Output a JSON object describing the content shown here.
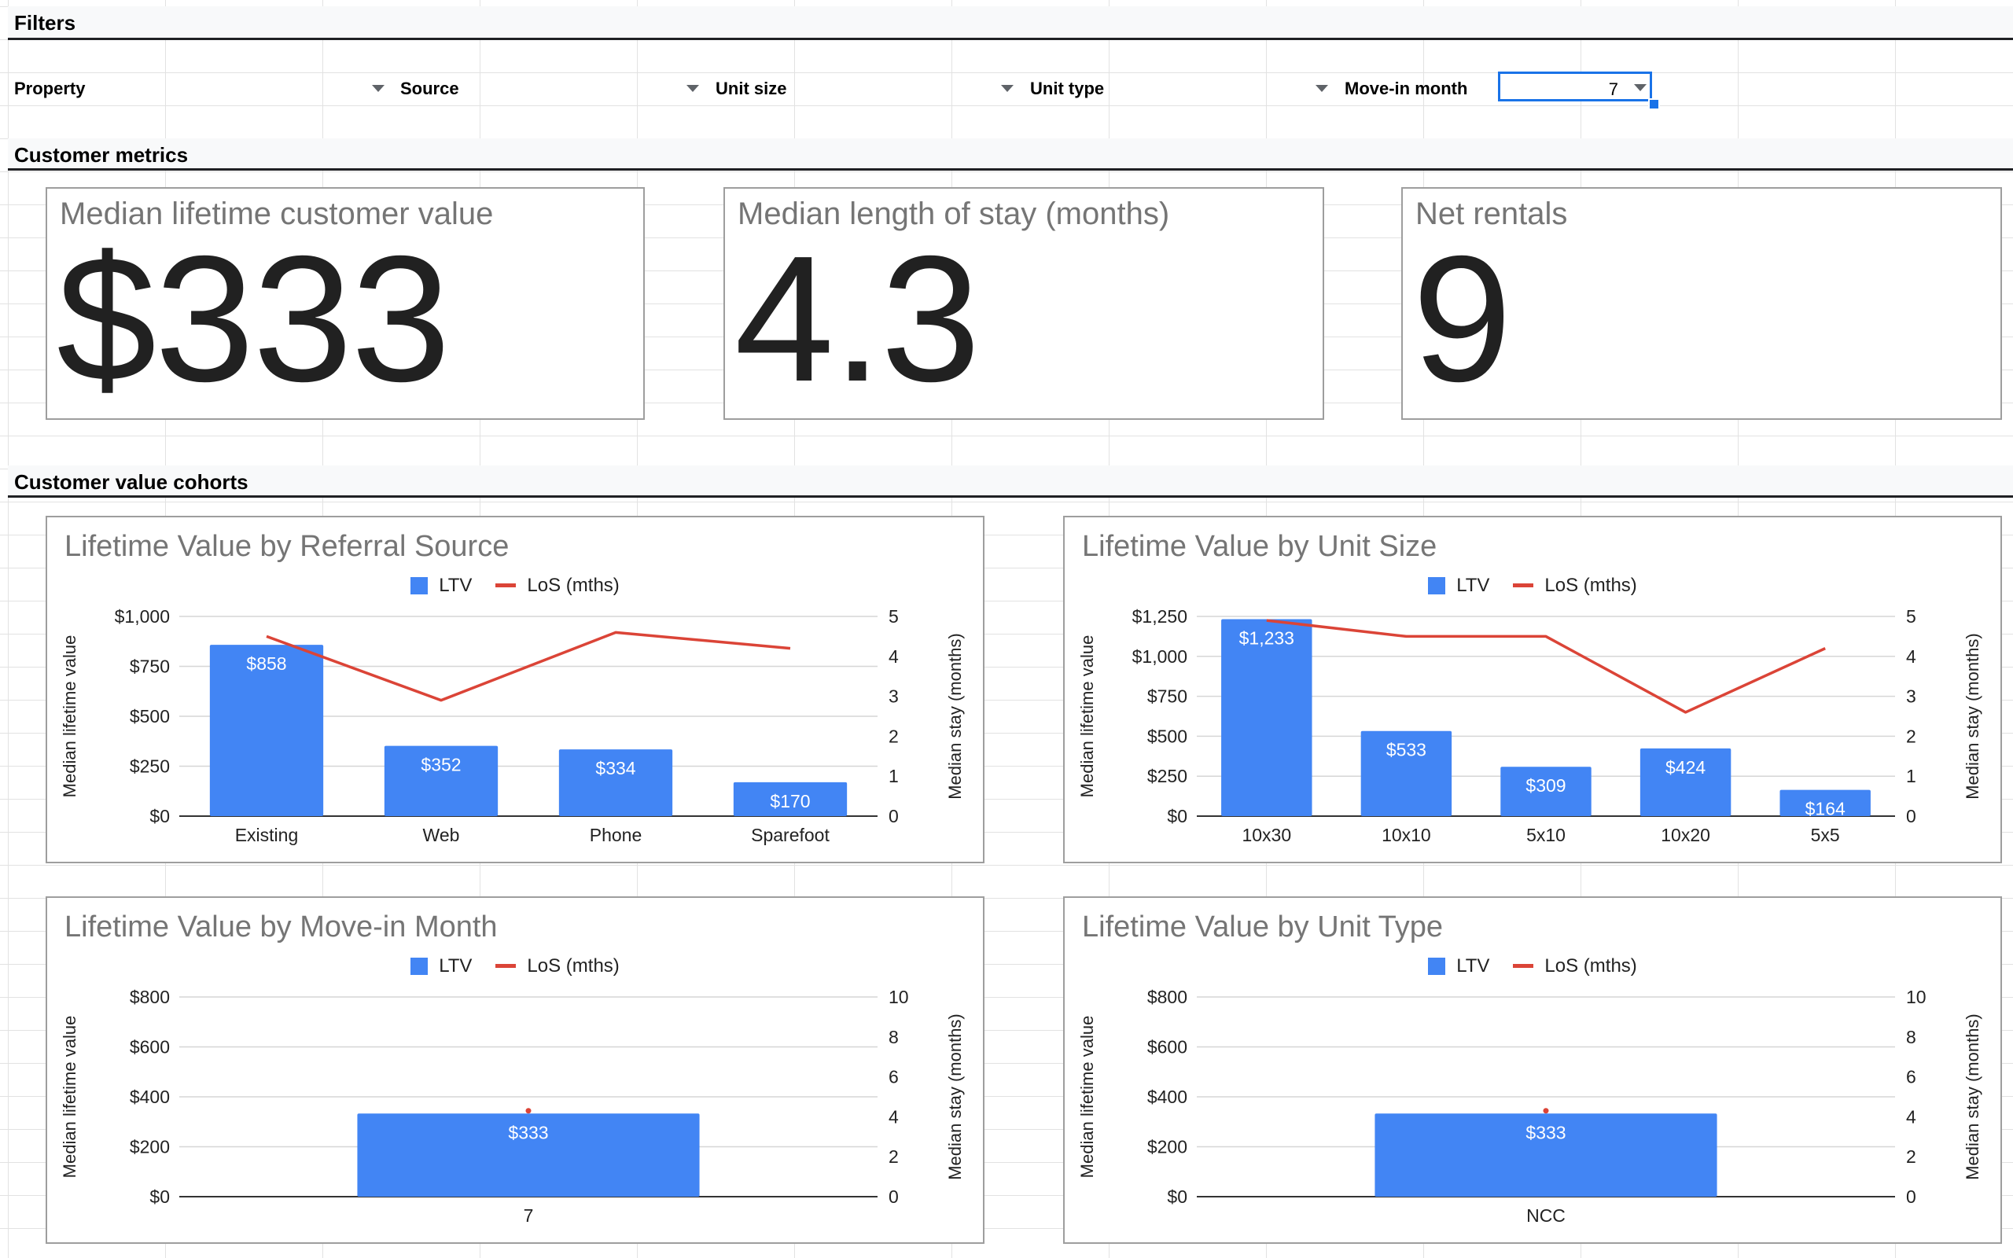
{
  "sections": {
    "filters": "Filters",
    "metrics": "Customer metrics",
    "cohorts": "Customer value cohorts"
  },
  "filters": {
    "property": "Property",
    "source": "Source",
    "unit_size": "Unit size",
    "unit_type": "Unit type",
    "move_in_month": "Move-in month",
    "move_in_value": "7"
  },
  "metrics": [
    {
      "title": "Median lifetime customer value",
      "value": "$333"
    },
    {
      "title": "Median length of stay (months)",
      "value": "4.3"
    },
    {
      "title": "Net rentals",
      "value": "9"
    }
  ],
  "colors": {
    "bar": "#4285f4",
    "line": "#db4437",
    "title": "#757575"
  },
  "legend": {
    "bar": "LTV",
    "line": "LoS (mths)"
  },
  "chart_data": [
    {
      "type": "bar",
      "title": "Lifetime Value by Referral Source",
      "ylabel": "Median lifetime value",
      "y2label": "Median stay (months)",
      "categories": [
        "Existing",
        "Web",
        "Phone",
        "Sparefoot"
      ],
      "series": [
        {
          "name": "LTV",
          "type": "bar",
          "values": [
            858,
            352,
            334,
            170
          ],
          "labels": [
            "$858",
            "$352",
            "$334",
            "$170"
          ]
        },
        {
          "name": "LoS (mths)",
          "type": "line",
          "axis": "right",
          "values": [
            4.5,
            2.9,
            4.6,
            4.2
          ]
        }
      ],
      "ylim": [
        0,
        1000
      ],
      "yticks": [
        "$0",
        "$250",
        "$500",
        "$750",
        "$1,000"
      ],
      "y2lim": [
        0,
        5
      ],
      "y2ticks": [
        "0",
        "1",
        "2",
        "3",
        "4",
        "5"
      ],
      "legend_position": "top"
    },
    {
      "type": "bar",
      "title": "Lifetime Value by Unit Size",
      "ylabel": "Median lifetime value",
      "y2label": "Median stay (months)",
      "categories": [
        "10x30",
        "10x10",
        "5x10",
        "10x20",
        "5x5"
      ],
      "series": [
        {
          "name": "LTV",
          "type": "bar",
          "values": [
            1233,
            533,
            309,
            424,
            164
          ],
          "labels": [
            "$1,233",
            "$533",
            "$309",
            "$424",
            "$164"
          ]
        },
        {
          "name": "LoS (mths)",
          "type": "line",
          "axis": "right",
          "values": [
            4.9,
            4.5,
            4.5,
            2.6,
            4.2
          ]
        }
      ],
      "ylim": [
        0,
        1250
      ],
      "yticks": [
        "$0",
        "$250",
        "$500",
        "$750",
        "$1,000",
        "$1,250"
      ],
      "y2lim": [
        0,
        5
      ],
      "y2ticks": [
        "0",
        "1",
        "2",
        "3",
        "4",
        "5"
      ],
      "legend_position": "top"
    },
    {
      "type": "bar",
      "title": "Lifetime Value by Move-in Month",
      "ylabel": "Median lifetime value",
      "y2label": "Median stay (months)",
      "categories": [
        "7"
      ],
      "series": [
        {
          "name": "LTV",
          "type": "bar",
          "values": [
            333
          ],
          "labels": [
            "$333"
          ]
        },
        {
          "name": "LoS (mths)",
          "type": "line",
          "axis": "right",
          "values": [
            4.3
          ]
        }
      ],
      "ylim": [
        0,
        800
      ],
      "yticks": [
        "$0",
        "$200",
        "$400",
        "$600",
        "$800"
      ],
      "y2lim": [
        0,
        10
      ],
      "y2ticks": [
        "0",
        "2",
        "4",
        "6",
        "8",
        "10"
      ],
      "legend_position": "top"
    },
    {
      "type": "bar",
      "title": "Lifetime Value by Unit Type",
      "ylabel": "Median lifetime value",
      "y2label": "Median stay (months)",
      "categories": [
        "NCC"
      ],
      "series": [
        {
          "name": "LTV",
          "type": "bar",
          "values": [
            333
          ],
          "labels": [
            "$333"
          ]
        },
        {
          "name": "LoS (mths)",
          "type": "line",
          "axis": "right",
          "values": [
            4.3
          ]
        }
      ],
      "ylim": [
        0,
        800
      ],
      "yticks": [
        "$0",
        "$200",
        "$400",
        "$600",
        "$800"
      ],
      "y2lim": [
        0,
        10
      ],
      "y2ticks": [
        "0",
        "2",
        "4",
        "6",
        "8",
        "10"
      ],
      "legend_position": "top"
    }
  ]
}
